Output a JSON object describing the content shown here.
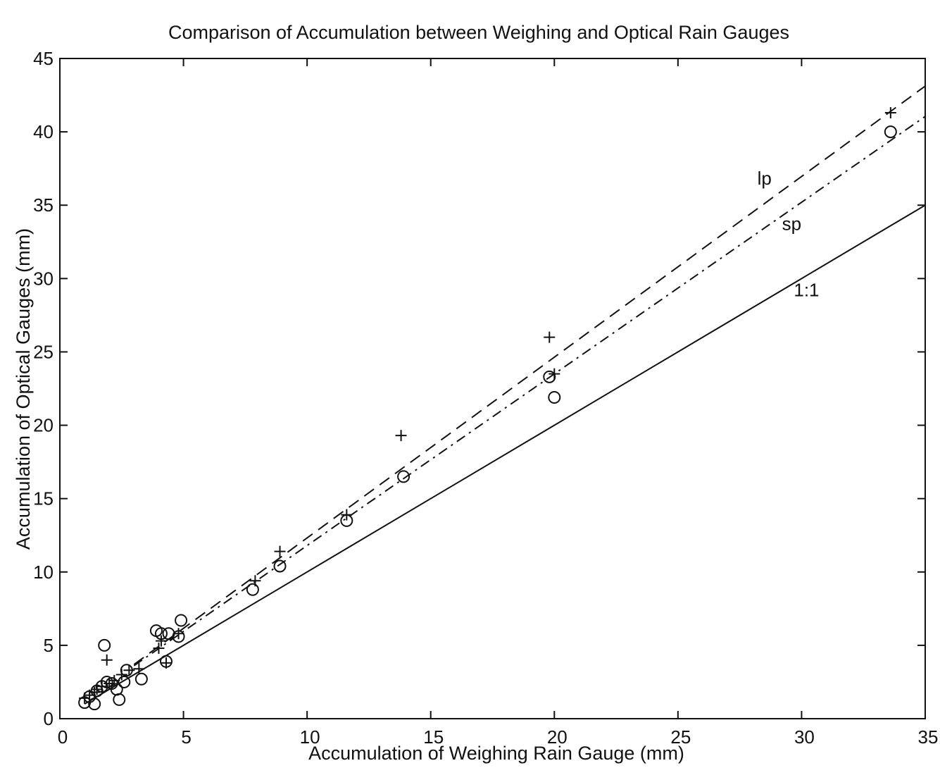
{
  "chart_data": {
    "type": "scatter",
    "title": "Comparison of Accumulation between Weighing and Optical Rain Gauges",
    "xlabel": "Accumulation of Weighing Rain Gauge (mm)",
    "ylabel": "Accumulation of Optical Gauges (mm)",
    "xlim": [
      0,
      35
    ],
    "ylim": [
      0,
      45
    ],
    "xticks": [
      "0",
      "5",
      "10",
      "15",
      "20",
      "25",
      "30",
      "35"
    ],
    "yticks": [
      "0",
      "5",
      "10",
      "15",
      "20",
      "25",
      "30",
      "35",
      "40",
      "45"
    ],
    "grid": false,
    "series": [
      {
        "marker": "plus",
        "points": [
          [
            1.0,
            1.4
          ],
          [
            1.2,
            1.6
          ],
          [
            1.4,
            1.8
          ],
          [
            1.5,
            2.0
          ],
          [
            1.7,
            2.2
          ],
          [
            1.9,
            4.0
          ],
          [
            2.0,
            2.4
          ],
          [
            2.2,
            2.6
          ],
          [
            2.5,
            3.0
          ],
          [
            2.8,
            3.3
          ],
          [
            3.2,
            3.4
          ],
          [
            4.0,
            4.8
          ],
          [
            4.1,
            5.3
          ],
          [
            4.3,
            3.8
          ],
          [
            4.8,
            5.8
          ],
          [
            7.9,
            9.4
          ],
          [
            8.9,
            11.4
          ],
          [
            11.6,
            13.9
          ],
          [
            13.8,
            19.3
          ],
          [
            19.8,
            26.0
          ],
          [
            20.0,
            23.5
          ],
          [
            33.6,
            41.3
          ]
        ]
      },
      {
        "marker": "circle",
        "points": [
          [
            1.0,
            1.1
          ],
          [
            1.2,
            1.5
          ],
          [
            1.4,
            1.0
          ],
          [
            1.5,
            1.9
          ],
          [
            1.7,
            2.2
          ],
          [
            1.8,
            5.0
          ],
          [
            1.9,
            2.5
          ],
          [
            2.1,
            2.4
          ],
          [
            2.3,
            2.0
          ],
          [
            2.4,
            1.3
          ],
          [
            2.6,
            2.5
          ],
          [
            2.7,
            3.3
          ],
          [
            3.3,
            2.7
          ],
          [
            3.9,
            6.0
          ],
          [
            4.1,
            5.8
          ],
          [
            4.3,
            3.9
          ],
          [
            4.4,
            5.8
          ],
          [
            4.8,
            5.6
          ],
          [
            4.9,
            6.7
          ],
          [
            7.8,
            8.8
          ],
          [
            8.9,
            10.4
          ],
          [
            11.6,
            13.5
          ],
          [
            13.9,
            16.5
          ],
          [
            19.8,
            23.3
          ],
          [
            20.0,
            21.9
          ],
          [
            33.6,
            40.0
          ]
        ]
      }
    ],
    "lines": [
      {
        "label": "lp",
        "style": "dashed",
        "slope": 1.232,
        "intercept": 0.0,
        "x_range": [
          3.0,
          35.0
        ]
      },
      {
        "label": "sp",
        "style": "dashdot",
        "slope": 1.17,
        "intercept": 0.1,
        "x_range": [
          3.0,
          35.0
        ]
      },
      {
        "label": "1:1",
        "style": "solid",
        "slope": 1.0,
        "intercept": 0.0,
        "x_range": [
          1.0,
          35.0
        ]
      }
    ]
  }
}
